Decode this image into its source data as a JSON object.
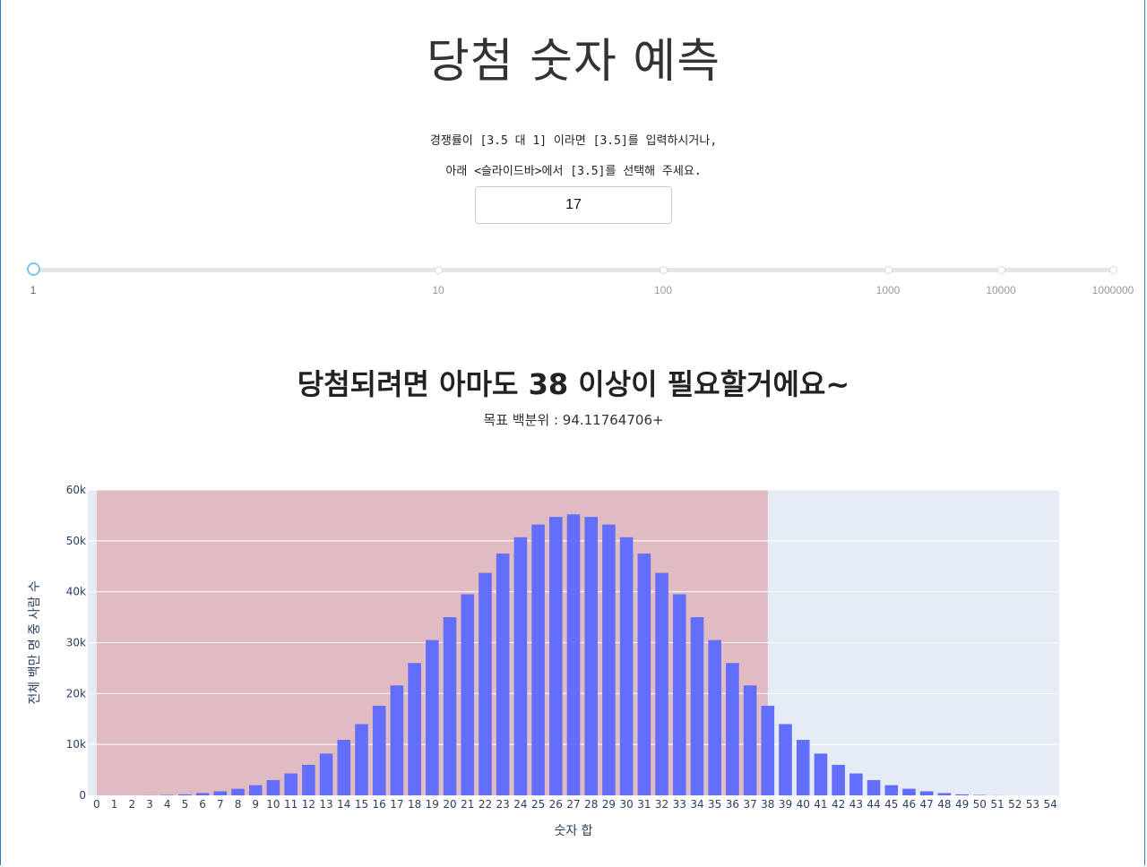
{
  "header": {
    "title": "당첨 숫자 예측"
  },
  "instructions": {
    "line1": "경쟁률이 [3.5 대 1] 이라면 [3.5]를 입력하시거나,",
    "line2": "아래 <슬라이드바>에서 [3.5]를 선택해 주세요."
  },
  "ratio_input": {
    "value": "17"
  },
  "slider": {
    "value": 1,
    "scale": "log",
    "marks": [
      "1",
      "10",
      "100",
      "1000",
      "10000",
      "1000000"
    ]
  },
  "result": {
    "title": "당첨되려면 아마도 38 이상이 필요할거에요~",
    "subtitle": "목표 백분위 : 94.11764706+"
  },
  "colors": {
    "bar": "#636efa",
    "highlight": "#d62728",
    "plot_bg": "#e5ecf6",
    "axis_text": "#2a3f5f"
  },
  "chart_data": {
    "type": "bar",
    "xlabel": "숫자 합",
    "ylabel": "전체 백만 명 중 사람 수",
    "ylim": [
      0,
      60000
    ],
    "yticks": [
      "0",
      "10k",
      "20k",
      "30k",
      "40k",
      "50k",
      "60k"
    ],
    "grid": true,
    "highlight_range": [
      0,
      38
    ],
    "categories": [
      "0",
      "1",
      "2",
      "3",
      "4",
      "5",
      "6",
      "7",
      "8",
      "9",
      "10",
      "11",
      "12",
      "13",
      "14",
      "15",
      "16",
      "17",
      "18",
      "19",
      "20",
      "21",
      "22",
      "23",
      "24",
      "25",
      "26",
      "27",
      "28",
      "29",
      "30",
      "31",
      "32",
      "33",
      "34",
      "35",
      "36",
      "37",
      "38",
      "39",
      "40",
      "41",
      "42",
      "43",
      "44",
      "45",
      "46",
      "47",
      "48",
      "49",
      "50",
      "51",
      "52",
      "53",
      "54"
    ],
    "values": [
      0,
      0,
      0,
      20,
      80,
      200,
      450,
      800,
      1300,
      2000,
      3000,
      4300,
      6000,
      8200,
      10900,
      14000,
      17600,
      21600,
      26000,
      30500,
      35000,
      39500,
      43700,
      47500,
      50700,
      53200,
      54700,
      55200,
      54700,
      53200,
      50700,
      47500,
      43700,
      39500,
      35000,
      30500,
      26000,
      21600,
      17600,
      14000,
      10900,
      8200,
      6000,
      4300,
      3000,
      2000,
      1300,
      800,
      450,
      200,
      80,
      20,
      0,
      0,
      0
    ]
  }
}
